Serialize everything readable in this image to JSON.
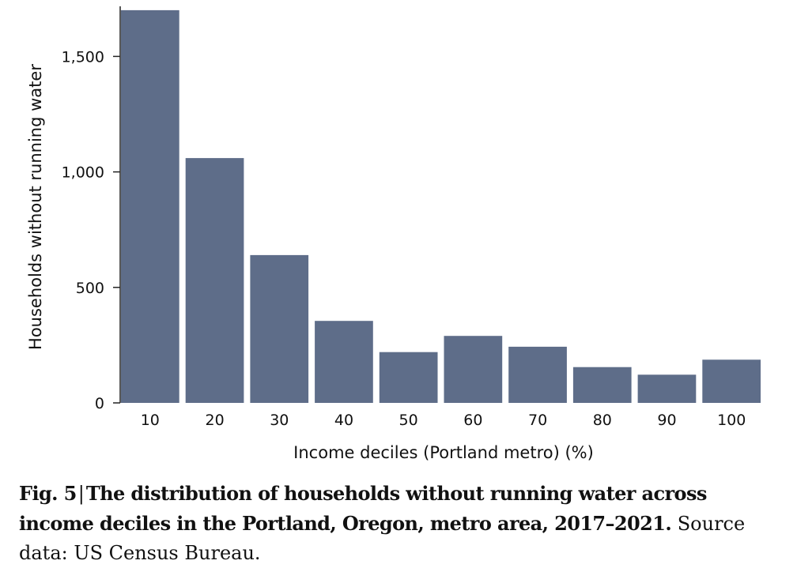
{
  "chart_data": {
    "type": "bar",
    "categories": [
      "10",
      "20",
      "30",
      "40",
      "50",
      "60",
      "70",
      "80",
      "90",
      "100"
    ],
    "values": [
      1700,
      1060,
      640,
      355,
      220,
      290,
      243,
      155,
      122,
      187
    ],
    "xlabel": "Income deciles (Portland metro) (%)",
    "ylabel": "Households without running water",
    "ylim": [
      0,
      1710
    ],
    "yticks": [
      0,
      500,
      1000,
      1500
    ],
    "ytick_labels": [
      "0",
      "500",
      "1,000",
      "1,500"
    ],
    "grid": false,
    "bar_color": "#5e6d89"
  },
  "caption": {
    "fig_label": "Fig. 5",
    "separator": "|",
    "title": "The distribution of households without running water across income deciles in the Portland, Oregon, metro area, 2017–2021.",
    "source": "Source data: US Census Bureau."
  }
}
